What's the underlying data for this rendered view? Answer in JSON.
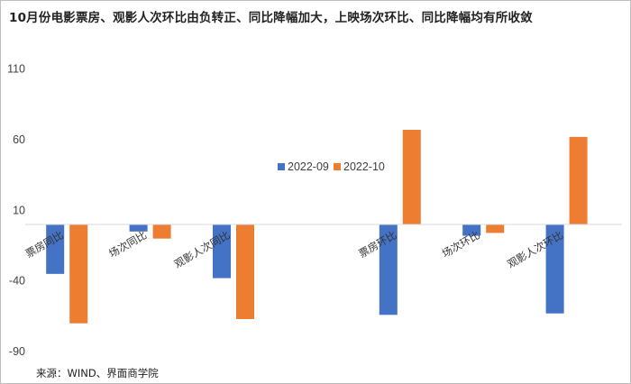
{
  "title": "10月份电影票房、观影人次环比由负转正、同比降幅加大，上映场次环比、同比降幅均有所收敛",
  "source": "来源：WIND、界面商学院",
  "colors": {
    "series1": "#4472c4",
    "series2": "#ed7d31"
  },
  "chart_data": {
    "type": "bar",
    "categories": [
      "票房同比",
      "场次同比",
      "观影人次同比",
      "",
      "票房环比",
      "场次环比",
      "观影人次环比"
    ],
    "series": [
      {
        "name": "2022-09",
        "values": [
          -35,
          -5,
          -38,
          null,
          -64,
          -8,
          -63
        ]
      },
      {
        "name": "2022-10",
        "values": [
          -70,
          -10,
          -67,
          null,
          67,
          -6,
          62
        ]
      }
    ],
    "yticks": [
      110,
      60,
      10,
      -40,
      -90
    ],
    "ylim": [
      -90,
      110
    ],
    "legend": "center-right",
    "grid": false
  }
}
